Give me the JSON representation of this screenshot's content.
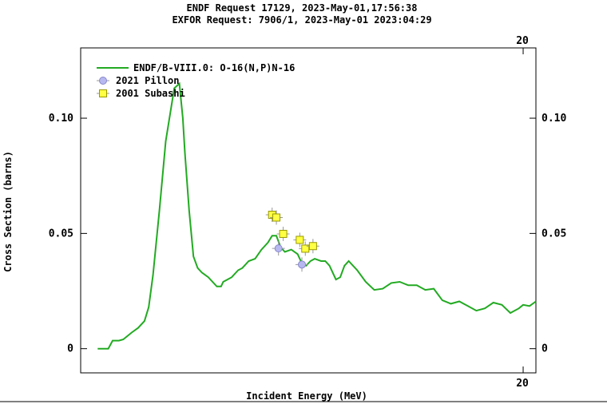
{
  "header": {
    "line1": "ENDF Request 17129, 2023-May-01,17:56:38",
    "line2": "EXFOR Request: 7906/1, 2023-May-01 2023:04:29"
  },
  "chart_data": {
    "type": "line",
    "title": "",
    "xlabel": "Incident Energy (MeV)",
    "ylabel": "Cross Section (barns)",
    "xlim": [
      9.6,
      20.3
    ],
    "ylim": [
      -0.0105,
      0.1305
    ],
    "x_ticks": [
      {
        "value": 20,
        "label": "20"
      }
    ],
    "y_ticks": [
      {
        "value": 0,
        "label": "0"
      },
      {
        "value": 0.05,
        "label": "0.05"
      },
      {
        "value": 0.1,
        "label": "0.10"
      }
    ],
    "grid": false,
    "legend_position": "top-left",
    "series": [
      {
        "name": "ENDF/B-VIII.0: O-16(N,P)N-16",
        "kind": "line",
        "color": "#22aa22",
        "x": [
          10.0,
          10.25,
          10.35,
          10.5,
          10.6,
          10.8,
          10.95,
          11.1,
          11.2,
          11.3,
          11.45,
          11.6,
          11.8,
          11.92,
          12.0,
          12.05,
          12.15,
          12.25,
          12.35,
          12.45,
          12.6,
          12.8,
          12.9,
          12.95,
          13.05,
          13.15,
          13.3,
          13.4,
          13.55,
          13.7,
          13.85,
          14.0,
          14.1,
          14.2,
          14.3,
          14.4,
          14.55,
          14.7,
          14.8,
          14.9,
          15.0,
          15.1,
          15.25,
          15.35,
          15.45,
          15.6,
          15.7,
          15.8,
          15.9,
          16.1,
          16.3,
          16.5,
          16.7,
          16.9,
          17.1,
          17.3,
          17.5,
          17.7,
          17.9,
          18.1,
          18.3,
          18.5,
          18.7,
          18.9,
          19.1,
          19.3,
          19.5,
          19.7,
          19.9,
          20.0,
          20.15,
          20.3
        ],
        "y": [
          0.0,
          0.0,
          0.0035,
          0.0035,
          0.004,
          0.007,
          0.009,
          0.012,
          0.018,
          0.032,
          0.06,
          0.09,
          0.113,
          0.115,
          0.1,
          0.085,
          0.06,
          0.04,
          0.035,
          0.033,
          0.031,
          0.027,
          0.027,
          0.029,
          0.03,
          0.031,
          0.034,
          0.035,
          0.038,
          0.039,
          0.043,
          0.046,
          0.049,
          0.049,
          0.044,
          0.042,
          0.043,
          0.041,
          0.037,
          0.036,
          0.038,
          0.039,
          0.038,
          0.038,
          0.036,
          0.03,
          0.031,
          0.036,
          0.038,
          0.034,
          0.029,
          0.0255,
          0.026,
          0.0285,
          0.029,
          0.0275,
          0.0275,
          0.0255,
          0.026,
          0.021,
          0.0195,
          0.0205,
          0.0185,
          0.0165,
          0.0175,
          0.02,
          0.019,
          0.0155,
          0.0175,
          0.019,
          0.0185,
          0.0205
        ]
      },
      {
        "name": "2021 Pillon",
        "kind": "scatter",
        "marker": "circle",
        "color": "#b8b8f0",
        "x": [
          14.25,
          14.8
        ],
        "y": [
          0.0435,
          0.0365
        ]
      },
      {
        "name": "2001 Subashi",
        "kind": "scatter",
        "marker": "square",
        "color": "#ffff44",
        "x": [
          14.1,
          14.2,
          14.36,
          14.75,
          14.88,
          15.06
        ],
        "y": [
          0.0581,
          0.0569,
          0.0498,
          0.0472,
          0.0434,
          0.0445
        ]
      }
    ]
  }
}
